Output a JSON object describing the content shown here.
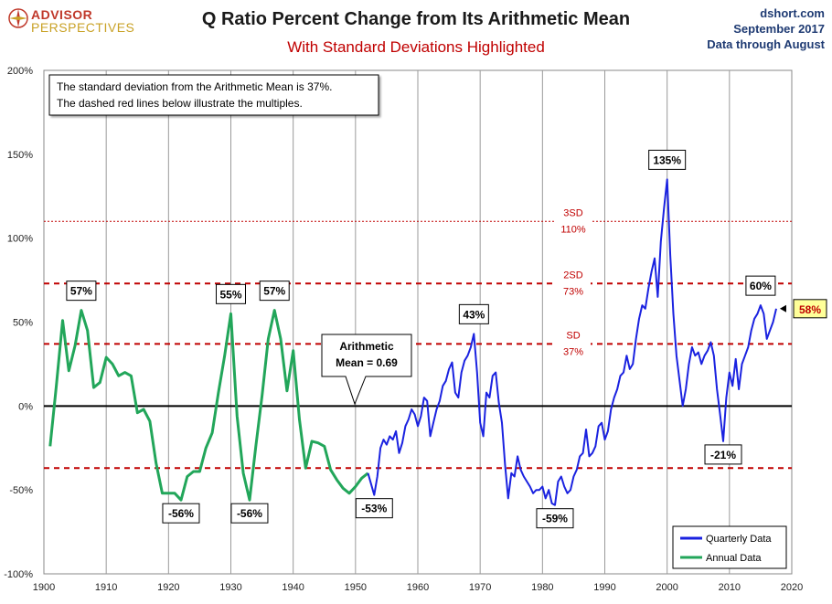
{
  "header": {
    "logo_line1": "ADVISOR",
    "logo_line2": "PERSPECTIVES",
    "source": "dshort.com",
    "date": "September 2017",
    "through": "Data through August"
  },
  "chart_data": {
    "type": "line",
    "title": "Q Ratio Percent Change from Its Arithmetic Mean",
    "subtitle": "With Standard Deviations Highlighted",
    "xlim": [
      1900,
      2020
    ],
    "ylim": [
      -100,
      200
    ],
    "x_ticks": [
      1900,
      1910,
      1920,
      1930,
      1940,
      1950,
      1960,
      1970,
      1980,
      1990,
      2000,
      2010,
      2020
    ],
    "y_ticks": [
      -100,
      -50,
      0,
      50,
      100,
      150,
      200
    ],
    "y_tick_labels": [
      "-100%",
      "-50%",
      "0%",
      "50%",
      "100%",
      "150%",
      "200%"
    ],
    "grid": {
      "vertical": true,
      "horizontal": false
    },
    "note_lines": [
      "The standard deviation from the Arithmetic Mean is 37%.",
      "The dashed red lines below illustrate the multiples."
    ],
    "mean_callout_lines": [
      "Arithmetic",
      "Mean = 0.69"
    ],
    "sd_lines": [
      {
        "value": 37,
        "label1": "SD",
        "label2": "37%",
        "style": "dashed"
      },
      {
        "value": 73,
        "label1": "2SD",
        "label2": "73%",
        "style": "dashed"
      },
      {
        "value": 110,
        "label1": "3SD",
        "label2": "110%",
        "style": "dotted"
      },
      {
        "value": -37,
        "label1": "",
        "label2": "",
        "style": "dashed"
      }
    ],
    "legend": {
      "position": "bottom-right",
      "entries": [
        "Quarterly Data",
        "Annual Data"
      ]
    },
    "series": [
      {
        "name": "Annual Data",
        "color": "#22a65a",
        "points": [
          [
            1901,
            -24
          ],
          [
            1902,
            12
          ],
          [
            1903,
            51
          ],
          [
            1904,
            21
          ],
          [
            1905,
            36
          ],
          [
            1906,
            57
          ],
          [
            1907,
            45
          ],
          [
            1908,
            11
          ],
          [
            1909,
            14
          ],
          [
            1910,
            29
          ],
          [
            1911,
            25
          ],
          [
            1912,
            18
          ],
          [
            1913,
            20
          ],
          [
            1914,
            18
          ],
          [
            1915,
            -4
          ],
          [
            1916,
            -2
          ],
          [
            1917,
            -9
          ],
          [
            1918,
            -34
          ],
          [
            1919,
            -52
          ],
          [
            1920,
            -52
          ],
          [
            1921,
            -52
          ],
          [
            1922,
            -56
          ],
          [
            1923,
            -42
          ],
          [
            1924,
            -39
          ],
          [
            1925,
            -39
          ],
          [
            1926,
            -25
          ],
          [
            1927,
            -16
          ],
          [
            1928,
            8
          ],
          [
            1929,
            30
          ],
          [
            1930,
            55
          ],
          [
            1931,
            -6
          ],
          [
            1932,
            -40
          ],
          [
            1933,
            -56
          ],
          [
            1934,
            -24
          ],
          [
            1935,
            6
          ],
          [
            1936,
            40
          ],
          [
            1937,
            57
          ],
          [
            1938,
            40
          ],
          [
            1939,
            9
          ],
          [
            1940,
            33
          ],
          [
            1941,
            -8
          ],
          [
            1942,
            -37
          ],
          [
            1943,
            -21
          ],
          [
            1944,
            -22
          ],
          [
            1945,
            -24
          ],
          [
            1946,
            -38
          ],
          [
            1947,
            -44
          ],
          [
            1948,
            -49
          ],
          [
            1949,
            -52
          ],
          [
            1950,
            -48
          ],
          [
            1951,
            -43
          ],
          [
            1952,
            -40
          ]
        ]
      },
      {
        "name": "Quarterly Data",
        "color": "#1a22e0",
        "points": [
          [
            1952,
            -40
          ],
          [
            1953,
            -53
          ],
          [
            1953.5,
            -42
          ],
          [
            1954,
            -25
          ],
          [
            1954.5,
            -20
          ],
          [
            1955,
            -23
          ],
          [
            1955.5,
            -18
          ],
          [
            1956,
            -20
          ],
          [
            1956.5,
            -15
          ],
          [
            1957,
            -28
          ],
          [
            1957.5,
            -22
          ],
          [
            1958,
            -12
          ],
          [
            1958.5,
            -8
          ],
          [
            1959,
            -2
          ],
          [
            1959.5,
            -5
          ],
          [
            1960,
            -12
          ],
          [
            1960.5,
            -6
          ],
          [
            1961,
            5
          ],
          [
            1961.5,
            3
          ],
          [
            1962,
            -18
          ],
          [
            1962.5,
            -10
          ],
          [
            1963,
            -2
          ],
          [
            1963.5,
            3
          ],
          [
            1964,
            12
          ],
          [
            1964.5,
            15
          ],
          [
            1965,
            22
          ],
          [
            1965.5,
            26
          ],
          [
            1966,
            8
          ],
          [
            1966.5,
            5
          ],
          [
            1967,
            20
          ],
          [
            1967.5,
            27
          ],
          [
            1968,
            30
          ],
          [
            1968.5,
            35
          ],
          [
            1969,
            43
          ],
          [
            1969.5,
            20
          ],
          [
            1970,
            -10
          ],
          [
            1970.5,
            -18
          ],
          [
            1971,
            8
          ],
          [
            1971.5,
            5
          ],
          [
            1972,
            18
          ],
          [
            1972.5,
            20
          ],
          [
            1973,
            2
          ],
          [
            1973.5,
            -10
          ],
          [
            1974,
            -35
          ],
          [
            1974.5,
            -55
          ],
          [
            1975,
            -40
          ],
          [
            1975.5,
            -42
          ],
          [
            1976,
            -30
          ],
          [
            1976.5,
            -38
          ],
          [
            1977,
            -42
          ],
          [
            1977.5,
            -45
          ],
          [
            1978,
            -48
          ],
          [
            1978.5,
            -52
          ],
          [
            1979,
            -50
          ],
          [
            1979.5,
            -50
          ],
          [
            1980,
            -48
          ],
          [
            1980.5,
            -55
          ],
          [
            1981,
            -50
          ],
          [
            1981.5,
            -58
          ],
          [
            1982,
            -59
          ],
          [
            1982.5,
            -45
          ],
          [
            1983,
            -42
          ],
          [
            1983.5,
            -48
          ],
          [
            1984,
            -52
          ],
          [
            1984.5,
            -50
          ],
          [
            1985,
            -42
          ],
          [
            1985.5,
            -38
          ],
          [
            1986,
            -30
          ],
          [
            1986.5,
            -28
          ],
          [
            1987,
            -14
          ],
          [
            1987.5,
            -30
          ],
          [
            1988,
            -28
          ],
          [
            1988.5,
            -24
          ],
          [
            1989,
            -12
          ],
          [
            1989.5,
            -10
          ],
          [
            1990,
            -20
          ],
          [
            1990.5,
            -15
          ],
          [
            1991,
            -2
          ],
          [
            1991.5,
            5
          ],
          [
            1992,
            10
          ],
          [
            1992.5,
            18
          ],
          [
            1993,
            20
          ],
          [
            1993.5,
            30
          ],
          [
            1994,
            22
          ],
          [
            1994.5,
            25
          ],
          [
            1995,
            40
          ],
          [
            1995.5,
            52
          ],
          [
            1996,
            60
          ],
          [
            1996.5,
            58
          ],
          [
            1997,
            70
          ],
          [
            1997.5,
            80
          ],
          [
            1998,
            88
          ],
          [
            1998.5,
            65
          ],
          [
            1999,
            98
          ],
          [
            1999.5,
            118
          ],
          [
            2000,
            135
          ],
          [
            2000.5,
            90
          ],
          [
            2001,
            55
          ],
          [
            2001.5,
            30
          ],
          [
            2002,
            15
          ],
          [
            2002.5,
            0
          ],
          [
            2003,
            10
          ],
          [
            2003.5,
            25
          ],
          [
            2004,
            35
          ],
          [
            2004.5,
            30
          ],
          [
            2005,
            32
          ],
          [
            2005.5,
            25
          ],
          [
            2006,
            30
          ],
          [
            2006.5,
            33
          ],
          [
            2007,
            38
          ],
          [
            2007.5,
            30
          ],
          [
            2008,
            10
          ],
          [
            2008.5,
            -5
          ],
          [
            2009,
            -21
          ],
          [
            2009.5,
            5
          ],
          [
            2010,
            20
          ],
          [
            2010.5,
            12
          ],
          [
            2011,
            28
          ],
          [
            2011.5,
            10
          ],
          [
            2012,
            25
          ],
          [
            2012.5,
            30
          ],
          [
            2013,
            35
          ],
          [
            2013.5,
            45
          ],
          [
            2014,
            52
          ],
          [
            2014.5,
            55
          ],
          [
            2015,
            60
          ],
          [
            2015.5,
            55
          ],
          [
            2016,
            40
          ],
          [
            2016.5,
            45
          ],
          [
            2017,
            50
          ],
          [
            2017.5,
            58
          ]
        ]
      }
    ],
    "annotations": [
      {
        "x": 1906,
        "y": 57,
        "text": "57%",
        "pos": "above"
      },
      {
        "x": 1930,
        "y": 55,
        "text": "55%",
        "pos": "above"
      },
      {
        "x": 1937,
        "y": 57,
        "text": "57%",
        "pos": "above"
      },
      {
        "x": 1969,
        "y": 43,
        "text": "43%",
        "pos": "above"
      },
      {
        "x": 2000,
        "y": 135,
        "text": "135%",
        "pos": "above"
      },
      {
        "x": 2015,
        "y": 60,
        "text": "60%",
        "pos": "above"
      },
      {
        "x": 1922,
        "y": -56,
        "text": "-56%",
        "pos": "below"
      },
      {
        "x": 1933,
        "y": -56,
        "text": "-56%",
        "pos": "below"
      },
      {
        "x": 1953,
        "y": -53,
        "text": "-53%",
        "pos": "below"
      },
      {
        "x": 1982,
        "y": -59,
        "text": "-59%",
        "pos": "below"
      },
      {
        "x": 2009,
        "y": -21,
        "text": "-21%",
        "pos": "below"
      }
    ],
    "latest_value": {
      "x": 2017.5,
      "y": 58,
      "text": "58%"
    }
  }
}
